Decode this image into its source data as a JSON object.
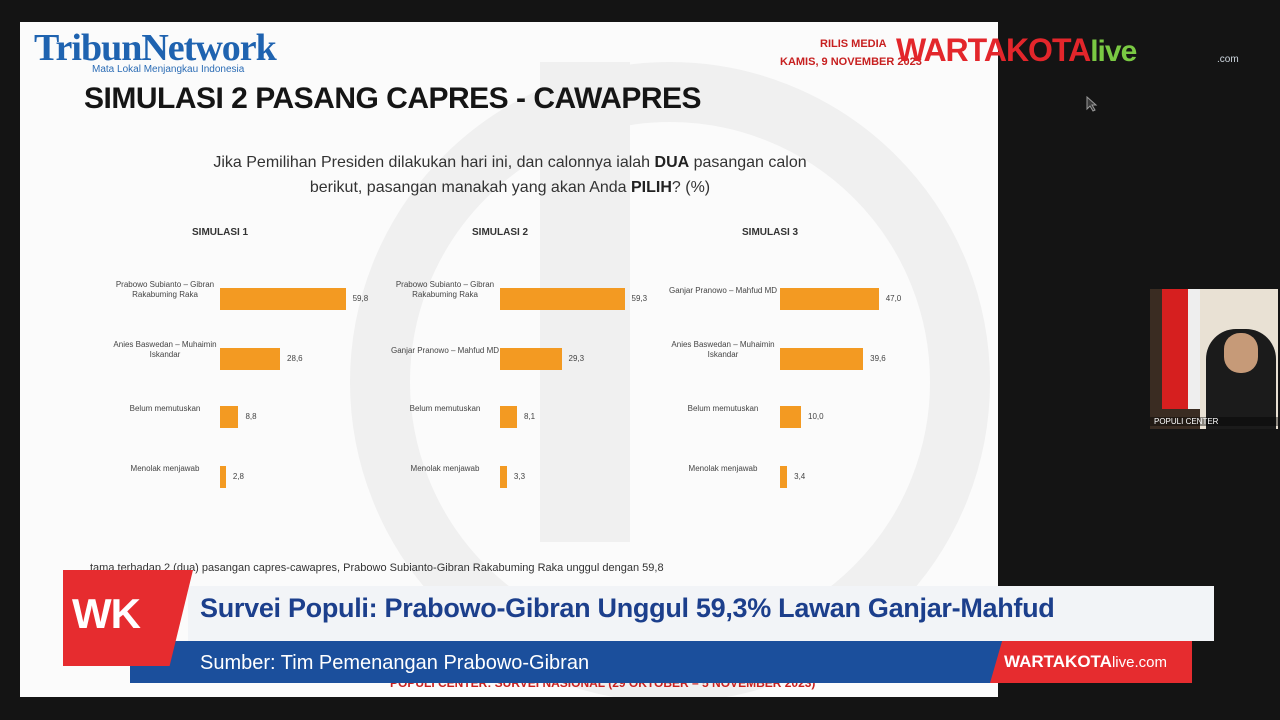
{
  "logo": {
    "name": "TribunNetwork",
    "tagline": "Mata Lokal Menjangkau Indonesia"
  },
  "slide": {
    "title": "SIMULASI 2 PASANG CAPRES - CAWAPRES",
    "rilis_label": "RILIS MEDIA",
    "rilis_date": "KAMIS, 9 NOVEMBER 2023",
    "question_part1": "Jika Pemilihan Presiden dilakukan hari ini, dan calonnya ialah ",
    "question_bold1": "DUA",
    "question_part2": " pasangan calon berikut, pasangan manakah yang akan Anda ",
    "question_bold2": "PILIH",
    "question_part3": "? (%)",
    "partial_text": "tama terhadap 2 (dua) pasangan capres-cawapres, Prabowo Subianto-Gibran Rakabuming Raka unggul dengan 59,8",
    "partial_footer": "POPULI CENTER: SURVEI NASIONAL (29 OKTOBER – 5 NOVEMBER 2023)"
  },
  "chart_data": [
    {
      "type": "bar",
      "orientation": "horizontal",
      "title": "SIMULASI 1",
      "categories": [
        "Prabowo Subianto – Gibran Rakabuming Raka",
        "Anies Baswedan – Muhaimin Iskandar",
        "Belum memutuskan",
        "Menolak menjawab"
      ],
      "values": [
        59.8,
        28.6,
        8.8,
        2.8
      ],
      "value_labels": [
        "59,8",
        "28,6",
        "8,8",
        "2,8"
      ],
      "color": "#f39a22"
    },
    {
      "type": "bar",
      "orientation": "horizontal",
      "title": "SIMULASI 2",
      "categories": [
        "Prabowo Subianto – Gibran Rakabuming Raka",
        "Ganjar Pranowo – Mahfud MD",
        "Belum memutuskan",
        "Menolak menjawab"
      ],
      "values": [
        59.3,
        29.3,
        8.1,
        3.3
      ],
      "value_labels": [
        "59,3",
        "29,3",
        "8,1",
        "3,3"
      ],
      "color": "#f39a22"
    },
    {
      "type": "bar",
      "orientation": "horizontal",
      "title": "SIMULASI 3",
      "categories": [
        "Ganjar Pranowo – Mahfud MD",
        "Anies Baswedan – Muhaimin Iskandar",
        "Belum memutuskan",
        "Menolak menjawab"
      ],
      "values": [
        47.0,
        39.6,
        10.0,
        3.4
      ],
      "value_labels": [
        "47,0",
        "39,6",
        "10,0",
        "3,4"
      ],
      "color": "#f39a22"
    }
  ],
  "channel": {
    "brand": "WARTAKOTA",
    "live": "live",
    "dot": ".com"
  },
  "webcam": {
    "label": "POPULI CENTER"
  },
  "lower_third": {
    "badge": "WK",
    "headline": "Survei Populi: Prabowo-Gibran Unggul 59,3% Lawan Ganjar-Mahfud",
    "source": "Sumber: Tim Pemenangan Prabowo-Gibran",
    "brand": "WARTAKOTA",
    "brand_live": "live",
    "brand_suffix": ".com"
  },
  "colors": {
    "bar": "#f39a22",
    "headline": "#1c3f8c",
    "accent_red": "#e62c2f",
    "band_blue": "#1b4f9c"
  }
}
